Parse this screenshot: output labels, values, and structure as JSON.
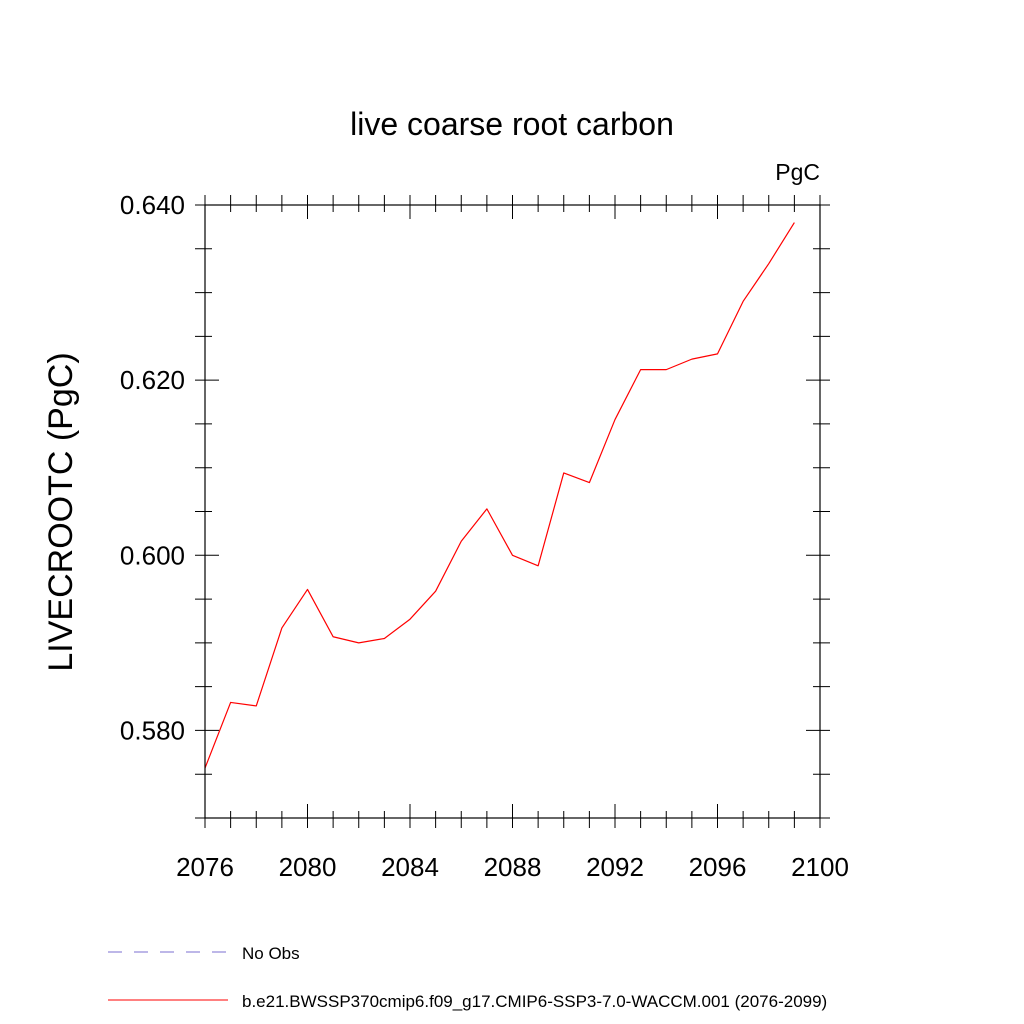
{
  "chart_data": {
    "type": "line",
    "title": "live coarse root carbon",
    "units": "PgC",
    "xlabel": "",
    "ylabel": "LIVECROOTC  (PgC)",
    "xlim": [
      2076,
      2100
    ],
    "ylim": [
      0.57,
      0.64
    ],
    "xticks": [
      2076,
      2080,
      2084,
      2088,
      2092,
      2096,
      2100
    ],
    "xtick_labels": [
      "2076",
      "2080",
      "2084",
      "2088",
      "2092",
      "2096",
      "2100"
    ],
    "yticks": [
      0.58,
      0.6,
      0.62,
      0.64
    ],
    "ytick_labels": [
      "0.580",
      "0.600",
      "0.620",
      "0.640"
    ],
    "series": [
      {
        "name": "b.e21.BWSSP370cmip6.f09_g17.CMIP6-SSP3-7.0-WACCM.001 (2076-2099)",
        "color": "#ff0000",
        "style": "solid",
        "x": [
          2076,
          2077,
          2078,
          2079,
          2080,
          2081,
          2082,
          2083,
          2084,
          2085,
          2086,
          2087,
          2088,
          2089,
          2090,
          2091,
          2092,
          2093,
          2094,
          2095,
          2096,
          2097,
          2098,
          2099
        ],
        "values": [
          0.5757,
          0.5832,
          0.5828,
          0.5917,
          0.5961,
          0.5907,
          0.59,
          0.5905,
          0.5927,
          0.5959,
          0.6016,
          0.6053,
          0.6,
          0.5988,
          0.6094,
          0.6083,
          0.6155,
          0.6212,
          0.6212,
          0.6224,
          0.623,
          0.629,
          0.6333,
          0.638
        ]
      }
    ],
    "legend": [
      {
        "label": "No Obs",
        "color": "#7b6fd0",
        "style": "dashed"
      },
      {
        "label": "b.e21.BWSSP370cmip6.f09_g17.CMIP6-SSP3-7.0-WACCM.001 (2076-2099)",
        "color": "#ff0000",
        "style": "solid"
      }
    ],
    "legend_position": "bottom-left"
  }
}
